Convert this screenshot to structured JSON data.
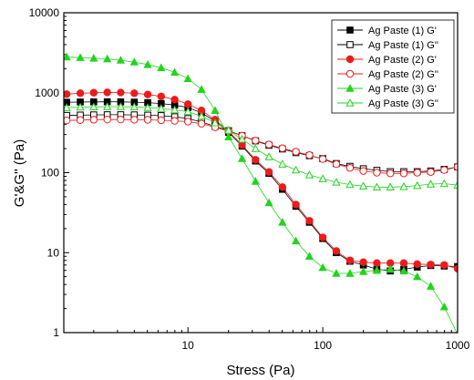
{
  "chart_data": {
    "type": "scatter",
    "xscale": "log",
    "yscale": "log",
    "xlim": [
      1.2,
      1000
    ],
    "ylim": [
      1,
      10000
    ],
    "xlabel": "Stress (Pa)",
    "ylabel": "G'&G'' (Pa)",
    "x_ticks": [
      {
        "value": 10,
        "label": "10"
      },
      {
        "value": 100,
        "label": "100"
      },
      {
        "value": 1000,
        "label": "1000"
      }
    ],
    "y_ticks": [
      {
        "value": 1,
        "label": "1"
      },
      {
        "value": 10,
        "label": "10"
      },
      {
        "value": 100,
        "label": "100"
      },
      {
        "value": 1000,
        "label": "1000"
      },
      {
        "value": 10000,
        "label": "10000"
      }
    ],
    "grid": false,
    "legend_position": "top-right",
    "series": [
      {
        "name": "Ag Paste (1) G'",
        "color": "#000000",
        "marker": "square",
        "filled": true,
        "points": [
          [
            1.26,
            760
          ],
          [
            1.59,
            765
          ],
          [
            2.0,
            768
          ],
          [
            2.52,
            770
          ],
          [
            3.17,
            768
          ],
          [
            4.0,
            762
          ],
          [
            5.03,
            752
          ],
          [
            6.33,
            732
          ],
          [
            7.97,
            700
          ],
          [
            10.0,
            652
          ],
          [
            12.6,
            560
          ],
          [
            15.9,
            440
          ],
          [
            20.0,
            320
          ],
          [
            25.2,
            215
          ],
          [
            31.7,
            140
          ],
          [
            39.9,
            98
          ],
          [
            50.2,
            62
          ],
          [
            63.2,
            38
          ],
          [
            79.6,
            24
          ],
          [
            100,
            15
          ],
          [
            126,
            10
          ],
          [
            159,
            7.8
          ],
          [
            200,
            7.0
          ],
          [
            252,
            6.2
          ],
          [
            317,
            5.9
          ],
          [
            399,
            6.2
          ],
          [
            502,
            6.6
          ],
          [
            632,
            6.9
          ],
          [
            796,
            6.8
          ],
          [
            1000,
            6.7
          ]
        ]
      },
      {
        "name": "Ag Paste (1) G''",
        "color": "#000000",
        "marker": "square",
        "filled": false,
        "points": [
          [
            1.26,
            520
          ],
          [
            1.59,
            525
          ],
          [
            2.0,
            528
          ],
          [
            2.52,
            530
          ],
          [
            3.17,
            530
          ],
          [
            4.0,
            528
          ],
          [
            5.03,
            524
          ],
          [
            6.33,
            517
          ],
          [
            7.97,
            500
          ],
          [
            10.0,
            475
          ],
          [
            12.6,
            430
          ],
          [
            15.9,
            380
          ],
          [
            20.0,
            335
          ],
          [
            25.2,
            290
          ],
          [
            31.7,
            250
          ],
          [
            39.9,
            220
          ],
          [
            50.2,
            198
          ],
          [
            63.2,
            178
          ],
          [
            79.6,
            163
          ],
          [
            100,
            150
          ],
          [
            126,
            130
          ],
          [
            159,
            120
          ],
          [
            200,
            112
          ],
          [
            252,
            107
          ],
          [
            317,
            103
          ],
          [
            399,
            103
          ],
          [
            502,
            103
          ],
          [
            632,
            105
          ],
          [
            796,
            110
          ],
          [
            1000,
            118
          ]
        ]
      },
      {
        "name": "Ag Paste (2) G'",
        "color": "#ee1b1b",
        "marker": "circle",
        "filled": true,
        "points": [
          [
            1.26,
            960
          ],
          [
            1.59,
            985
          ],
          [
            2.0,
            1000
          ],
          [
            2.52,
            1010
          ],
          [
            3.17,
            1005
          ],
          [
            4.0,
            985
          ],
          [
            5.03,
            950
          ],
          [
            6.33,
            900
          ],
          [
            7.97,
            820
          ],
          [
            10.0,
            720
          ],
          [
            12.6,
            600
          ],
          [
            15.9,
            460
          ],
          [
            20.0,
            330
          ],
          [
            25.2,
            222
          ],
          [
            31.7,
            145
          ],
          [
            39.9,
            102
          ],
          [
            50.2,
            66
          ],
          [
            63.2,
            40
          ],
          [
            79.6,
            25
          ],
          [
            100,
            15.5
          ],
          [
            126,
            10.5
          ],
          [
            159,
            8.0
          ],
          [
            200,
            7.6
          ],
          [
            252,
            7.4
          ],
          [
            317,
            7.4
          ],
          [
            399,
            7.4
          ],
          [
            502,
            7.2
          ],
          [
            632,
            7.1
          ],
          [
            796,
            7.0
          ],
          [
            1000,
            6.3
          ]
        ]
      },
      {
        "name": "Ag Paste (2) G''",
        "color": "#ee1b1b",
        "marker": "circle",
        "filled": false,
        "points": [
          [
            1.26,
            450
          ],
          [
            1.59,
            455
          ],
          [
            2.0,
            460
          ],
          [
            2.52,
            462
          ],
          [
            3.17,
            462
          ],
          [
            4.0,
            460
          ],
          [
            5.03,
            458
          ],
          [
            6.33,
            452
          ],
          [
            7.97,
            445
          ],
          [
            10.0,
            435
          ],
          [
            12.6,
            410
          ],
          [
            15.9,
            370
          ],
          [
            20.0,
            330
          ],
          [
            25.2,
            290
          ],
          [
            31.7,
            252
          ],
          [
            39.9,
            225
          ],
          [
            50.2,
            202
          ],
          [
            63.2,
            183
          ],
          [
            79.6,
            166
          ],
          [
            100,
            148
          ],
          [
            126,
            128
          ],
          [
            159,
            115
          ],
          [
            200,
            105
          ],
          [
            252,
            100
          ],
          [
            317,
            98
          ],
          [
            399,
            98
          ],
          [
            502,
            100
          ],
          [
            632,
            102
          ],
          [
            796,
            108
          ],
          [
            1000,
            118
          ]
        ]
      },
      {
        "name": "Ag Paste (3) G'",
        "color": "#22d41e",
        "marker": "triangle",
        "filled": true,
        "points": [
          [
            1.26,
            2800
          ],
          [
            1.59,
            2750
          ],
          [
            2.0,
            2700
          ],
          [
            2.52,
            2650
          ],
          [
            3.17,
            2550
          ],
          [
            4.0,
            2420
          ],
          [
            5.03,
            2250
          ],
          [
            6.33,
            2050
          ],
          [
            7.97,
            1800
          ],
          [
            10.0,
            1500
          ],
          [
            12.6,
            1100
          ],
          [
            15.9,
            600
          ],
          [
            20.0,
            280
          ],
          [
            25.2,
            150
          ],
          [
            31.7,
            78
          ],
          [
            39.9,
            42
          ],
          [
            50.2,
            24
          ],
          [
            63.2,
            14
          ],
          [
            79.6,
            9
          ],
          [
            100,
            6.5
          ],
          [
            126,
            5.5
          ],
          [
            159,
            5.5
          ],
          [
            200,
            5.8
          ],
          [
            252,
            6.0
          ],
          [
            317,
            6.2
          ],
          [
            399,
            5.9
          ],
          [
            502,
            5.0
          ],
          [
            632,
            3.8
          ],
          [
            796,
            2.1
          ],
          [
            1000,
            0.95
          ]
        ]
      },
      {
        "name": "Ag Paste (3) G''",
        "color": "#22d41e",
        "marker": "triangle",
        "filled": false,
        "points": [
          [
            1.26,
            650
          ],
          [
            1.59,
            660
          ],
          [
            2.0,
            665
          ],
          [
            2.52,
            670
          ],
          [
            3.17,
            670
          ],
          [
            4.0,
            665
          ],
          [
            5.03,
            652
          ],
          [
            6.33,
            635
          ],
          [
            7.97,
            610
          ],
          [
            10.0,
            580
          ],
          [
            12.6,
            510
          ],
          [
            15.9,
            420
          ],
          [
            20.0,
            340
          ],
          [
            25.2,
            262
          ],
          [
            31.7,
            200
          ],
          [
            39.9,
            158
          ],
          [
            50.2,
            128
          ],
          [
            63.2,
            108
          ],
          [
            79.6,
            94
          ],
          [
            100,
            84
          ],
          [
            126,
            76
          ],
          [
            159,
            71
          ],
          [
            200,
            68
          ],
          [
            252,
            66
          ],
          [
            317,
            66
          ],
          [
            399,
            67
          ],
          [
            502,
            69
          ],
          [
            632,
            72
          ],
          [
            796,
            73
          ],
          [
            1000,
            70
          ]
        ]
      }
    ]
  }
}
